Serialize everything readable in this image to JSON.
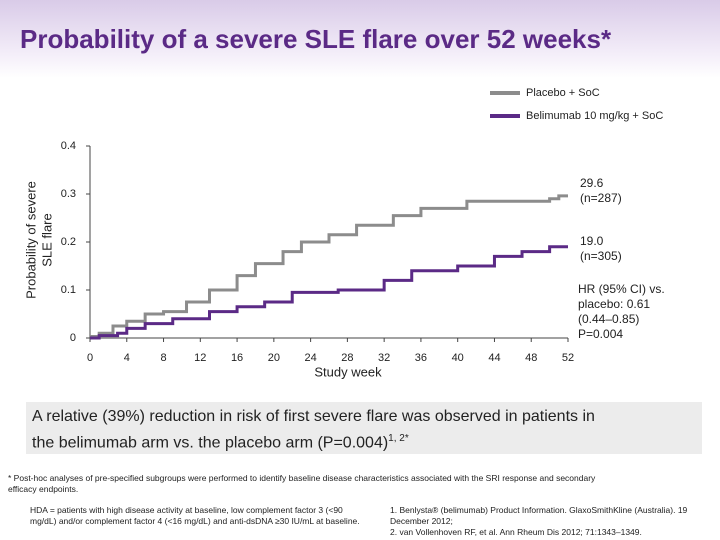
{
  "title": "Probability of a severe SLE flare over 52 weeks*",
  "chart_data": {
    "type": "line",
    "step": true,
    "xlabel": "Study week",
    "ylabel": [
      "Probability of severe",
      "SLE flare"
    ],
    "xlim": [
      0,
      52
    ],
    "xticks": [
      0,
      4,
      8,
      12,
      16,
      20,
      24,
      28,
      32,
      36,
      40,
      44,
      48,
      52
    ],
    "ylim": [
      0,
      0.4
    ],
    "yticks": [
      0,
      0.1,
      0.2,
      0.3,
      0.4
    ],
    "legend": "upper right",
    "series": [
      {
        "name": "Placebo + SoC",
        "color": "#8c8c8c",
        "x": [
          0,
          1,
          2.5,
          4,
          6,
          8,
          10.5,
          13,
          16,
          18,
          21,
          23,
          26,
          29,
          33,
          36,
          41,
          50,
          51,
          52
        ],
        "values": [
          0.003,
          0.01,
          0.025,
          0.035,
          0.05,
          0.055,
          0.075,
          0.1,
          0.13,
          0.155,
          0.18,
          0.2,
          0.215,
          0.235,
          0.255,
          0.27,
          0.285,
          0.29,
          0.296,
          0.296
        ]
      },
      {
        "name": "Belimumab 10 mg/kg + SoC",
        "color": "#5b2a86",
        "x": [
          0,
          1,
          3,
          4,
          6,
          9,
          13,
          16,
          19,
          22,
          27,
          32,
          35,
          40,
          44,
          47,
          50,
          52
        ],
        "values": [
          0,
          0.005,
          0.01,
          0.02,
          0.03,
          0.04,
          0.055,
          0.065,
          0.075,
          0.095,
          0.1,
          0.12,
          0.14,
          0.15,
          0.17,
          0.18,
          0.19,
          0.19
        ]
      }
    ],
    "annotations": [
      [
        "29.6",
        "(n=287)"
      ],
      [
        "19.0",
        "(n=305)"
      ],
      [
        "HR (95% CI) vs.",
        "placebo: 0.61",
        "(0.44–0.85)",
        "P=0.004"
      ]
    ]
  },
  "callout": {
    "line1": "A relative (39%) reduction in risk of first severe flare was observed in patients in",
    "line2": "the belimumab arm vs. the placebo arm (P=0.004)",
    "sup": "1, 2*"
  },
  "footnote": "* Post-hoc analyses of pre-specified subgroups were performed to identify baseline disease characteristics associated with the SRI response and secondary efficacy endpoints.",
  "bullet": "HDA = patients with high disease activity at baseline, low complement factor 3 (<90 mg/dL) and/or complement factor 4 (<16 mg/dL) and anti-dsDNA ≥30 IU/mL at baseline.",
  "references": [
    "1. Benlysta® (belimumab) Product Information. GlaxoSmithKline (Australia). 19 December 2012;",
    "2. van Vollenhoven RF, et al. Ann Rheum Dis 2012; 71:1343–1349."
  ]
}
